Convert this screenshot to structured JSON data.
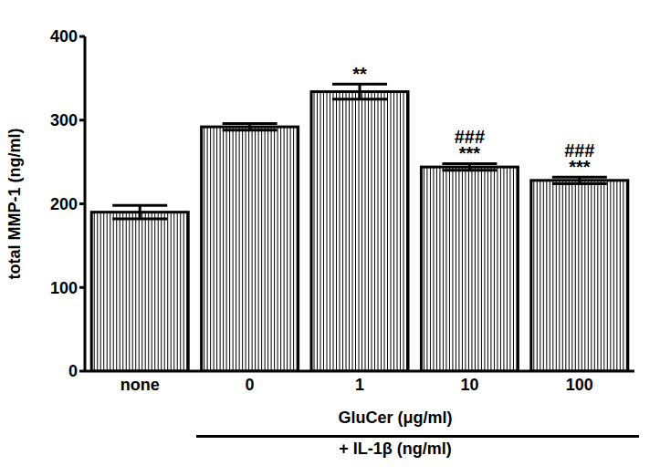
{
  "chart_data": {
    "type": "bar",
    "categories": [
      "none",
      "0",
      "1",
      "10",
      "100"
    ],
    "values": [
      190,
      292,
      334,
      244,
      228
    ],
    "errors": [
      8,
      4,
      9,
      4,
      4
    ],
    "annotations": [
      null,
      null,
      [
        "**"
      ],
      [
        "###",
        "***"
      ],
      [
        "###",
        "***"
      ]
    ],
    "color": "#000000",
    "ylim": [
      0,
      400
    ],
    "yticks": [
      0,
      100,
      200,
      300,
      400
    ],
    "ylabel": "total MMP-1 (ng/ml)",
    "group_label": "GluCer (μg/ml)",
    "xlabel": "+ IL-1β (ng/ml)",
    "grid": false
  }
}
